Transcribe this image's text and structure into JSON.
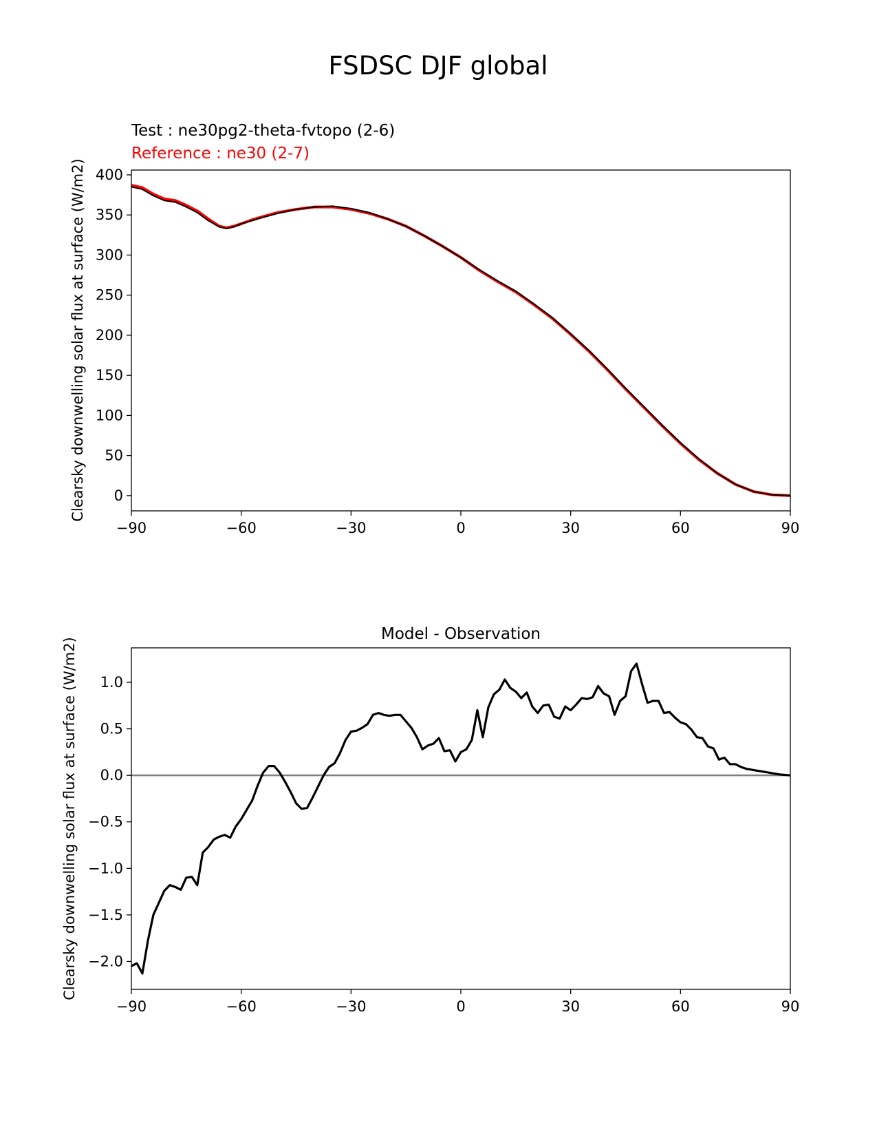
{
  "figure_title": "FSDSC DJF global",
  "chart_data": [
    {
      "type": "line",
      "legend": {
        "test_label": "Test : ne30pg2-theta-fvtopo (2-6)",
        "reference_label": "Reference : ne30 (2-7)"
      },
      "ylabel": "Clearsky downwelling solar flux at surface (W/m2)",
      "xlim": [
        -90,
        90
      ],
      "ylim": [
        -19,
        406
      ],
      "xticks": [
        -90,
        -60,
        -30,
        0,
        30,
        60,
        90
      ],
      "xtick_labels": [
        "−90",
        "−60",
        "−30",
        "0",
        "30",
        "60",
        "90"
      ],
      "yticks": [
        0,
        50,
        100,
        150,
        200,
        250,
        300,
        350,
        400
      ],
      "ytick_labels": [
        "0",
        "50",
        "100",
        "150",
        "200",
        "250",
        "300",
        "350",
        "400"
      ],
      "series": [
        {
          "name": "Reference",
          "color": "#ff0000",
          "x": [
            -90,
            -87,
            -84,
            -81,
            -78,
            -75,
            -72,
            -69,
            -66,
            -64,
            -62,
            -60,
            -57,
            -54,
            -50,
            -45,
            -40,
            -35,
            -30,
            -25,
            -20,
            -15,
            -10,
            -5,
            0,
            5,
            10,
            15,
            20,
            25,
            30,
            35,
            40,
            45,
            50,
            55,
            60,
            65,
            70,
            75,
            80,
            85,
            90
          ],
          "values": [
            387,
            384,
            376,
            370,
            368,
            362,
            355,
            345,
            336,
            334,
            336,
            339,
            344,
            348,
            353,
            357,
            360,
            360,
            357,
            352,
            345,
            336,
            324,
            311,
            297,
            281,
            267,
            254,
            238,
            221,
            201,
            180,
            157,
            133,
            110,
            87,
            65,
            45,
            28,
            14,
            5,
            1,
            0
          ]
        },
        {
          "name": "Test",
          "color": "#000000",
          "x": [
            -90,
            -87,
            -84,
            -81,
            -78,
            -75,
            -72,
            -69,
            -66,
            -64,
            -62,
            -60,
            -57,
            -54,
            -50,
            -45,
            -40,
            -35,
            -30,
            -25,
            -20,
            -15,
            -10,
            -5,
            0,
            5,
            10,
            15,
            20,
            25,
            30,
            35,
            40,
            45,
            50,
            55,
            60,
            65,
            70,
            75,
            80,
            85,
            90
          ],
          "values": [
            385,
            382,
            374,
            368,
            366,
            360,
            353,
            343,
            335,
            333,
            335,
            339,
            343,
            347,
            352,
            357,
            360,
            361,
            358,
            353,
            345,
            336,
            324,
            311,
            297,
            282,
            268,
            255,
            239,
            222,
            202,
            181,
            158,
            134,
            111,
            88,
            66,
            46,
            28,
            14,
            5,
            1,
            0
          ]
        }
      ]
    },
    {
      "type": "line",
      "title": "Model - Observation",
      "ylabel": "Clearsky downwelling solar flux at surface (W/m2)",
      "xlim": [
        -90,
        90
      ],
      "ylim": [
        -2.3,
        1.37
      ],
      "xticks": [
        -90,
        -60,
        -30,
        0,
        30,
        60,
        90
      ],
      "xtick_labels": [
        "−90",
        "−60",
        "−30",
        "0",
        "30",
        "60",
        "90"
      ],
      "yticks": [
        -2.0,
        -1.5,
        -1.0,
        -0.5,
        0.0,
        0.5,
        1.0
      ],
      "ytick_labels": [
        "−2.0",
        "−1.5",
        "−1.0",
        "−0.5",
        "0.0",
        "0.5",
        "1.0"
      ],
      "zero_line_color": "#808080",
      "series": [
        {
          "name": "Model - Observation",
          "color": "#000000",
          "x": [
            -90,
            -88.5,
            -87,
            -85.5,
            -84,
            -82.5,
            -81,
            -79.5,
            -78,
            -76.5,
            -75,
            -73.5,
            -72,
            -70.5,
            -69,
            -67.5,
            -66,
            -64.5,
            -63,
            -61.5,
            -60,
            -58.5,
            -57,
            -55.5,
            -54,
            -52.5,
            -51,
            -49.5,
            -48,
            -46.5,
            -45,
            -43.5,
            -42,
            -40.5,
            -39,
            -37.5,
            -36,
            -34.5,
            -33,
            -31.5,
            -30,
            -28.5,
            -27,
            -25.5,
            -24,
            -22.5,
            -21,
            -19.5,
            -18,
            -16.5,
            -15,
            -13.5,
            -12,
            -10.5,
            -9,
            -7.5,
            -6,
            -4.5,
            -3,
            -1.5,
            0,
            1.5,
            3,
            4.5,
            6,
            7.5,
            9,
            10.5,
            12,
            13.5,
            15,
            16.5,
            18,
            19.5,
            21,
            22.5,
            24,
            25.5,
            27,
            28.5,
            30,
            31.5,
            33,
            34.5,
            36,
            37.5,
            39,
            40.5,
            42,
            43.5,
            45,
            46.5,
            48,
            49.5,
            51,
            52.5,
            54,
            55.5,
            57,
            58.5,
            60,
            61.5,
            63,
            64.5,
            66,
            67.5,
            69,
            70.5,
            72,
            73.5,
            75,
            76.5,
            78,
            79.5,
            81,
            82.5,
            84,
            85.5,
            87,
            88.5,
            90
          ],
          "values": [
            -2.05,
            -2.02,
            -2.13,
            -1.78,
            -1.5,
            -1.37,
            -1.24,
            -1.18,
            -1.2,
            -1.23,
            -1.1,
            -1.09,
            -1.18,
            -0.83,
            -0.77,
            -0.69,
            -0.66,
            -0.64,
            -0.67,
            -0.55,
            -0.47,
            -0.37,
            -0.27,
            -0.11,
            0.03,
            0.1,
            0.1,
            0.03,
            -0.07,
            -0.18,
            -0.3,
            -0.36,
            -0.35,
            -0.24,
            -0.12,
            0.0,
            0.09,
            0.13,
            0.24,
            0.38,
            0.47,
            0.48,
            0.51,
            0.55,
            0.65,
            0.67,
            0.65,
            0.64,
            0.65,
            0.65,
            0.58,
            0.51,
            0.41,
            0.28,
            0.32,
            0.34,
            0.4,
            0.26,
            0.27,
            0.15,
            0.25,
            0.28,
            0.38,
            0.7,
            0.41,
            0.73,
            0.87,
            0.92,
            1.03,
            0.94,
            0.9,
            0.83,
            0.89,
            0.74,
            0.67,
            0.75,
            0.76,
            0.63,
            0.61,
            0.74,
            0.7,
            0.76,
            0.83,
            0.82,
            0.84,
            0.96,
            0.88,
            0.85,
            0.65,
            0.8,
            0.85,
            1.12,
            1.2,
            0.98,
            0.78,
            0.8,
            0.8,
            0.67,
            0.68,
            0.62,
            0.57,
            0.55,
            0.49,
            0.41,
            0.4,
            0.31,
            0.29,
            0.17,
            0.19,
            0.12,
            0.12,
            0.09,
            0.07,
            0.06,
            0.05,
            0.04,
            0.03,
            0.02,
            0.01,
            0.005,
            0.0
          ]
        }
      ]
    }
  ]
}
